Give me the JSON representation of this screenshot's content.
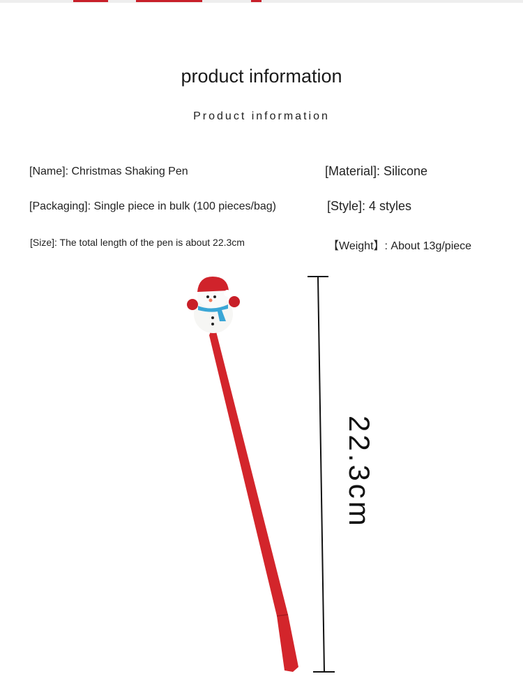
{
  "title": "product information",
  "subtitle": "Product information",
  "specs": {
    "name": "[Name]: Christmas Shaking Pen",
    "material": "[Material]: Silicone",
    "packaging": "[Packaging]: Single piece in bulk (100 pieces/bag)",
    "style": "[Style]: 4 styles",
    "size": "[Size]: The total length of the pen is about 22.3cm",
    "weight": "【Weight】: About 13g/piece"
  },
  "dimension_label": "22.3cm",
  "colors": {
    "pen": "#d3252b",
    "scarf": "#3aa6d6"
  }
}
